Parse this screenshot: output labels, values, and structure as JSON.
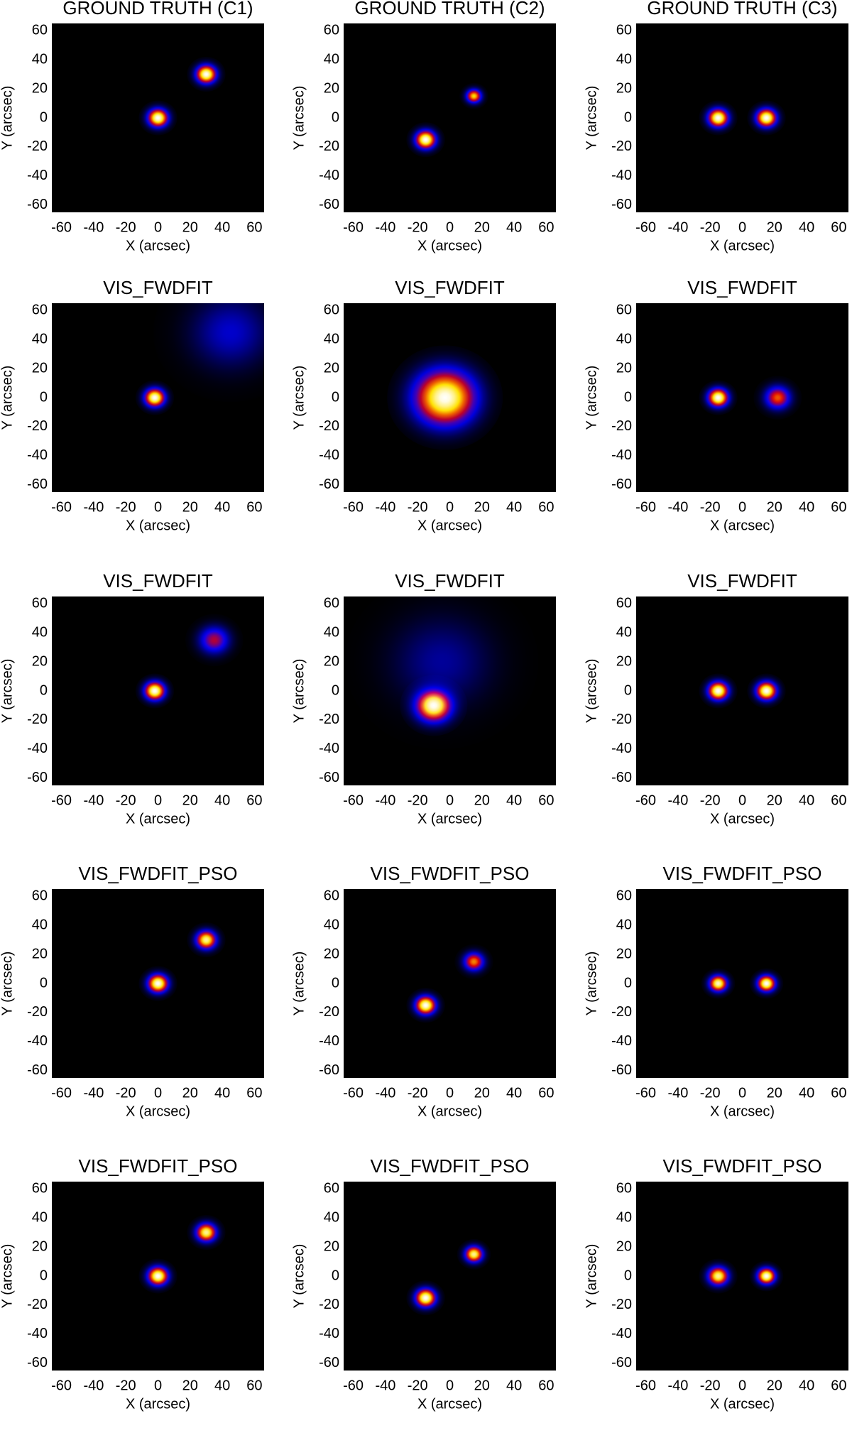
{
  "chart_data": [
    {
      "type": "image",
      "title": "GROUND TRUTH (C1)",
      "xlabel": "X (arcsec)",
      "ylabel": "Y (arcsec)",
      "xlim": [
        -66,
        66
      ],
      "ylim": [
        -65,
        65
      ],
      "xticks": [
        -60,
        -40,
        -20,
        0,
        20,
        40,
        60
      ],
      "yticks": [
        -60,
        -40,
        -20,
        0,
        20,
        40,
        60
      ],
      "sources": [
        {
          "x": 0,
          "y": 0,
          "size": 4,
          "peak": 1
        },
        {
          "x": 30,
          "y": 30,
          "size": 4,
          "peak": 1
        }
      ]
    },
    {
      "type": "image",
      "title": "GROUND TRUTH (C2)",
      "xlabel": "X (arcsec)",
      "ylabel": "Y (arcsec)",
      "xlim": [
        -66,
        66
      ],
      "ylim": [
        -65,
        65
      ],
      "xticks": [
        -60,
        -40,
        -20,
        0,
        20,
        40,
        60
      ],
      "yticks": [
        -60,
        -40,
        -20,
        0,
        20,
        40,
        60
      ],
      "sources": [
        {
          "x": -15,
          "y": -15,
          "size": 4,
          "peak": 1
        },
        {
          "x": 15,
          "y": 15,
          "size": 3,
          "peak": 0.75
        }
      ]
    },
    {
      "type": "image",
      "title": "GROUND TRUTH (C3)",
      "xlabel": "X (arcsec)",
      "ylabel": "Y (arcsec)",
      "xlim": [
        -66,
        66
      ],
      "ylim": [
        -65,
        65
      ],
      "xticks": [
        -60,
        -40,
        -20,
        0,
        20,
        40,
        60
      ],
      "yticks": [
        -60,
        -40,
        -20,
        0,
        20,
        40,
        60
      ],
      "sources": [
        {
          "x": -15,
          "y": 0,
          "size": 4,
          "peak": 1
        },
        {
          "x": 15,
          "y": 0,
          "size": 4,
          "peak": 1
        }
      ]
    },
    {
      "type": "image",
      "title": "VIS_FWDFIT",
      "xlabel": "X (arcsec)",
      "ylabel": "Y (arcsec)",
      "xlim": [
        -66,
        66
      ],
      "ylim": [
        -65,
        65
      ],
      "xticks": [
        -60,
        -40,
        -20,
        0,
        20,
        40,
        60
      ],
      "yticks": [
        -60,
        -40,
        -20,
        0,
        20,
        40,
        60
      ],
      "sources": [
        {
          "x": -2,
          "y": 0,
          "size": 4,
          "peak": 1
        },
        {
          "x": 45,
          "y": 45,
          "size": 16,
          "peak": 0.2
        }
      ]
    },
    {
      "type": "image",
      "title": "VIS_FWDFIT",
      "xlabel": "X (arcsec)",
      "ylabel": "Y (arcsec)",
      "xlim": [
        -66,
        66
      ],
      "ylim": [
        -65,
        65
      ],
      "xticks": [
        -60,
        -40,
        -20,
        0,
        20,
        40,
        60
      ],
      "yticks": [
        -60,
        -40,
        -20,
        0,
        20,
        40,
        60
      ],
      "sources": [
        {
          "x": -3,
          "y": 0,
          "size": 12,
          "peak": 1
        }
      ]
    },
    {
      "type": "image",
      "title": "VIS_FWDFIT",
      "xlabel": "X (arcsec)",
      "ylabel": "Y (arcsec)",
      "xlim": [
        -66,
        66
      ],
      "ylim": [
        -65,
        65
      ],
      "xticks": [
        -60,
        -40,
        -20,
        0,
        20,
        40,
        60
      ],
      "yticks": [
        -60,
        -40,
        -20,
        0,
        20,
        40,
        60
      ],
      "sources": [
        {
          "x": -15,
          "y": 0,
          "size": 4,
          "peak": 1
        },
        {
          "x": 22,
          "y": 0,
          "size": 5,
          "peak": 0.6
        }
      ]
    },
    {
      "type": "image",
      "title": "VIS_FWDFIT",
      "xlabel": "X (arcsec)",
      "ylabel": "Y (arcsec)",
      "xlim": [
        -66,
        66
      ],
      "ylim": [
        -65,
        65
      ],
      "xticks": [
        -60,
        -40,
        -20,
        0,
        20,
        40,
        60
      ],
      "yticks": [
        -60,
        -40,
        -20,
        0,
        20,
        40,
        60
      ],
      "sources": [
        {
          "x": -2,
          "y": 0,
          "size": 4,
          "peak": 1
        },
        {
          "x": 35,
          "y": 35,
          "size": 6,
          "peak": 0.45
        }
      ]
    },
    {
      "type": "image",
      "title": "VIS_FWDFIT",
      "xlabel": "X (arcsec)",
      "ylabel": "Y (arcsec)",
      "xlim": [
        -66,
        66
      ],
      "ylim": [
        -65,
        65
      ],
      "xticks": [
        -60,
        -40,
        -20,
        0,
        20,
        40,
        60
      ],
      "yticks": [
        -60,
        -40,
        -20,
        0,
        20,
        40,
        60
      ],
      "sources": [
        {
          "x": -10,
          "y": -10,
          "size": 7,
          "peak": 1
        },
        {
          "x": -5,
          "y": 20,
          "size": 20,
          "peak": 0.15
        }
      ]
    },
    {
      "type": "image",
      "title": "VIS_FWDFIT",
      "xlabel": "X (arcsec)",
      "ylabel": "Y (arcsec)",
      "xlim": [
        -66,
        66
      ],
      "ylim": [
        -65,
        65
      ],
      "xticks": [
        -60,
        -40,
        -20,
        0,
        20,
        40,
        60
      ],
      "yticks": [
        -60,
        -40,
        -20,
        0,
        20,
        40,
        60
      ],
      "sources": [
        {
          "x": -15,
          "y": 0,
          "size": 4,
          "peak": 1
        },
        {
          "x": 15,
          "y": 0,
          "size": 4,
          "peak": 1
        }
      ]
    },
    {
      "type": "image",
      "title": "VIS_FWDFIT_PSO",
      "xlabel": "X (arcsec)",
      "ylabel": "Y (arcsec)",
      "xlim": [
        -66,
        66
      ],
      "ylim": [
        -65,
        65
      ],
      "xticks": [
        -60,
        -40,
        -20,
        0,
        20,
        40,
        60
      ],
      "yticks": [
        -60,
        -40,
        -20,
        0,
        20,
        40,
        60
      ],
      "sources": [
        {
          "x": 0,
          "y": 0,
          "size": 4,
          "peak": 1
        },
        {
          "x": 30,
          "y": 30,
          "size": 4,
          "peak": 0.9
        }
      ]
    },
    {
      "type": "image",
      "title": "VIS_FWDFIT_PSO",
      "xlabel": "X (arcsec)",
      "ylabel": "Y (arcsec)",
      "xlim": [
        -66,
        66
      ],
      "ylim": [
        -65,
        65
      ],
      "xticks": [
        -60,
        -40,
        -20,
        0,
        20,
        40,
        60
      ],
      "yticks": [
        -60,
        -40,
        -20,
        0,
        20,
        40,
        60
      ],
      "sources": [
        {
          "x": -15,
          "y": -15,
          "size": 4,
          "peak": 1
        },
        {
          "x": 15,
          "y": 15,
          "size": 4,
          "peak": 0.65
        }
      ]
    },
    {
      "type": "image",
      "title": "VIS_FWDFIT_PSO",
      "xlabel": "X (arcsec)",
      "ylabel": "Y (arcsec)",
      "xlim": [
        -66,
        66
      ],
      "ylim": [
        -65,
        65
      ],
      "xticks": [
        -60,
        -40,
        -20,
        0,
        20,
        40,
        60
      ],
      "yticks": [
        -60,
        -40,
        -20,
        0,
        20,
        40,
        60
      ],
      "sources": [
        {
          "x": -15,
          "y": 0,
          "size": 3.5,
          "peak": 0.95
        },
        {
          "x": 15,
          "y": 0,
          "size": 3.5,
          "peak": 1
        }
      ]
    },
    {
      "type": "image",
      "title": "VIS_FWDFIT_PSO",
      "xlabel": "X (arcsec)",
      "ylabel": "Y (arcsec)",
      "xlim": [
        -66,
        66
      ],
      "ylim": [
        -65,
        65
      ],
      "xticks": [
        -60,
        -40,
        -20,
        0,
        20,
        40,
        60
      ],
      "yticks": [
        -60,
        -40,
        -20,
        0,
        20,
        40,
        60
      ],
      "sources": [
        {
          "x": 0,
          "y": 0,
          "size": 4,
          "peak": 1
        },
        {
          "x": 30,
          "y": 30,
          "size": 4,
          "peak": 0.9
        }
      ]
    },
    {
      "type": "image",
      "title": "VIS_FWDFIT_PSO",
      "xlabel": "X (arcsec)",
      "ylabel": "Y (arcsec)",
      "xlim": [
        -66,
        66
      ],
      "ylim": [
        -65,
        65
      ],
      "xticks": [
        -60,
        -40,
        -20,
        0,
        20,
        40,
        60
      ],
      "yticks": [
        -60,
        -40,
        -20,
        0,
        20,
        40,
        60
      ],
      "sources": [
        {
          "x": -15,
          "y": -15,
          "size": 4,
          "peak": 1
        },
        {
          "x": 15,
          "y": 15,
          "size": 3.5,
          "peak": 0.9
        }
      ]
    },
    {
      "type": "image",
      "title": "VIS_FWDFIT_PSO",
      "xlabel": "X (arcsec)",
      "ylabel": "Y (arcsec)",
      "xlim": [
        -66,
        66
      ],
      "ylim": [
        -65,
        65
      ],
      "xticks": [
        -60,
        -40,
        -20,
        0,
        20,
        40,
        60
      ],
      "yticks": [
        -60,
        -40,
        -20,
        0,
        20,
        40,
        60
      ],
      "sources": [
        {
          "x": -15,
          "y": 0,
          "size": 4,
          "peak": 0.9
        },
        {
          "x": 15,
          "y": 0,
          "size": 3.5,
          "peak": 1
        }
      ]
    }
  ]
}
